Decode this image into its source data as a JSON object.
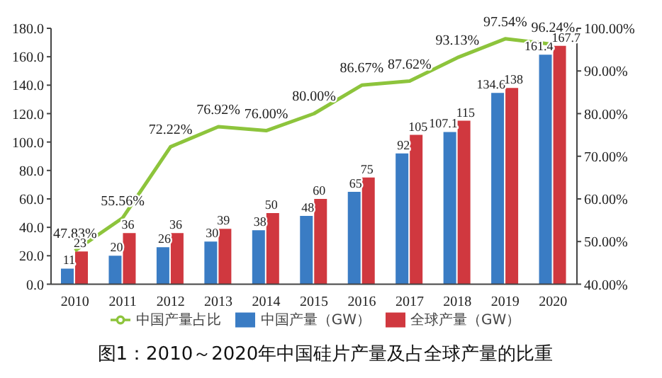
{
  "chart_data": {
    "type": "bar",
    "title": "图1：2010～2020年中国硅片产量及占全球产量的比重",
    "categories": [
      "2010",
      "2011",
      "2012",
      "2013",
      "2014",
      "2015",
      "2016",
      "2017",
      "2018",
      "2019",
      "2020"
    ],
    "series": [
      {
        "name": "中国产量（GW）",
        "color": "#3a7cc4",
        "values": [
          11,
          20,
          26,
          30,
          38,
          48,
          65,
          92,
          107.1,
          134.6,
          161.4
        ],
        "value_labels": [
          "11",
          "20",
          "26",
          "30",
          "38",
          "48",
          "65",
          "92",
          "107.1",
          "134.6",
          "161.4"
        ]
      },
      {
        "name": "全球产量（GW）",
        "color": "#d0383f",
        "values": [
          23,
          36,
          36,
          39,
          50,
          60,
          75,
          105,
          115,
          138,
          167.7
        ],
        "value_labels": [
          "23",
          "36",
          "36",
          "39",
          "50",
          "60",
          "75",
          "105",
          "115",
          "138",
          "167.7"
        ]
      },
      {
        "name": "中国产量占比",
        "type": "line",
        "axis": "y2",
        "color": "#8dc43c",
        "marker": "none",
        "values": [
          47.83,
          55.56,
          72.22,
          76.92,
          76.0,
          80.0,
          86.67,
          87.62,
          93.13,
          97.54,
          96.24
        ],
        "value_labels": [
          "47.83%",
          "55.56%",
          "72.22%",
          "76.92%",
          "76.00%",
          "80.00%",
          "86.67%",
          "87.62%",
          "93.13%",
          "97.54%",
          "96.24%"
        ]
      }
    ],
    "ylim": [
      0,
      180
    ],
    "yticks": [
      {
        "value": 0,
        "label": "0.0"
      },
      {
        "value": 20,
        "label": "20.0"
      },
      {
        "value": 40,
        "label": "40.0"
      },
      {
        "value": 60,
        "label": "60.0"
      },
      {
        "value": 80,
        "label": "80.0"
      },
      {
        "value": 100,
        "label": "100.0"
      },
      {
        "value": 120,
        "label": "120.0"
      },
      {
        "value": 140,
        "label": "140.0"
      },
      {
        "value": 160,
        "label": "160.0"
      },
      {
        "value": 180,
        "label": "180.0"
      }
    ],
    "y2lim": [
      40,
      100
    ],
    "y2ticks": [
      {
        "value": 40,
        "label": "40.00%"
      },
      {
        "value": 50,
        "label": "50.00%"
      },
      {
        "value": 60,
        "label": "60.00%"
      },
      {
        "value": 70,
        "label": "70.00%"
      },
      {
        "value": 80,
        "label": "80.00%"
      },
      {
        "value": 90,
        "label": "90.00%"
      },
      {
        "value": 100,
        "label": "100.00%"
      }
    ],
    "grid": false,
    "legend": "bottom"
  }
}
